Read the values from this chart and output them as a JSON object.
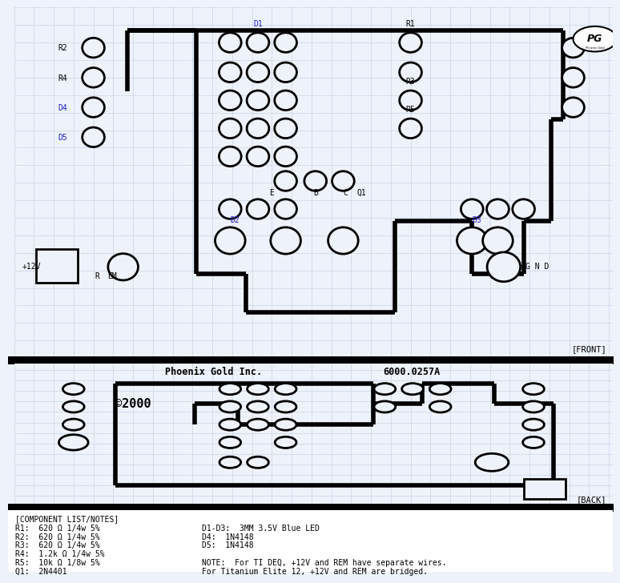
{
  "bg_color": "#eef2fa",
  "grid_color": "#c8d4e8",
  "line_color": "#000000",
  "front_label": "[FRONT]",
  "back_label": "[BACK]",
  "title_company": "Phoenix Gold Inc.",
  "title_part": "6000.0257A",
  "copyright": "©2000",
  "component_list_header": "[COMPONENT LIST/NOTES]",
  "components_left": [
    "R1:  620 Ω 1/4w 5%",
    "R2:  620 Ω 1/4w 5%",
    "R3:  620 Ω 1/4w 5%",
    "R4:  1.2k Ω 1/4w 5%",
    "R5:  10k Ω 1/8w 5%",
    "Q1:  2N4401"
  ],
  "components_right": [
    "D1-D3:  3MM 3.5V Blue LED",
    "D4:  1N4148",
    "D5:  1N4148",
    "",
    "NOTE:  For TI DEQ, +12V and REM have separate wires.",
    "For Titanium Elite 12, +12V and REM are bridged."
  ]
}
